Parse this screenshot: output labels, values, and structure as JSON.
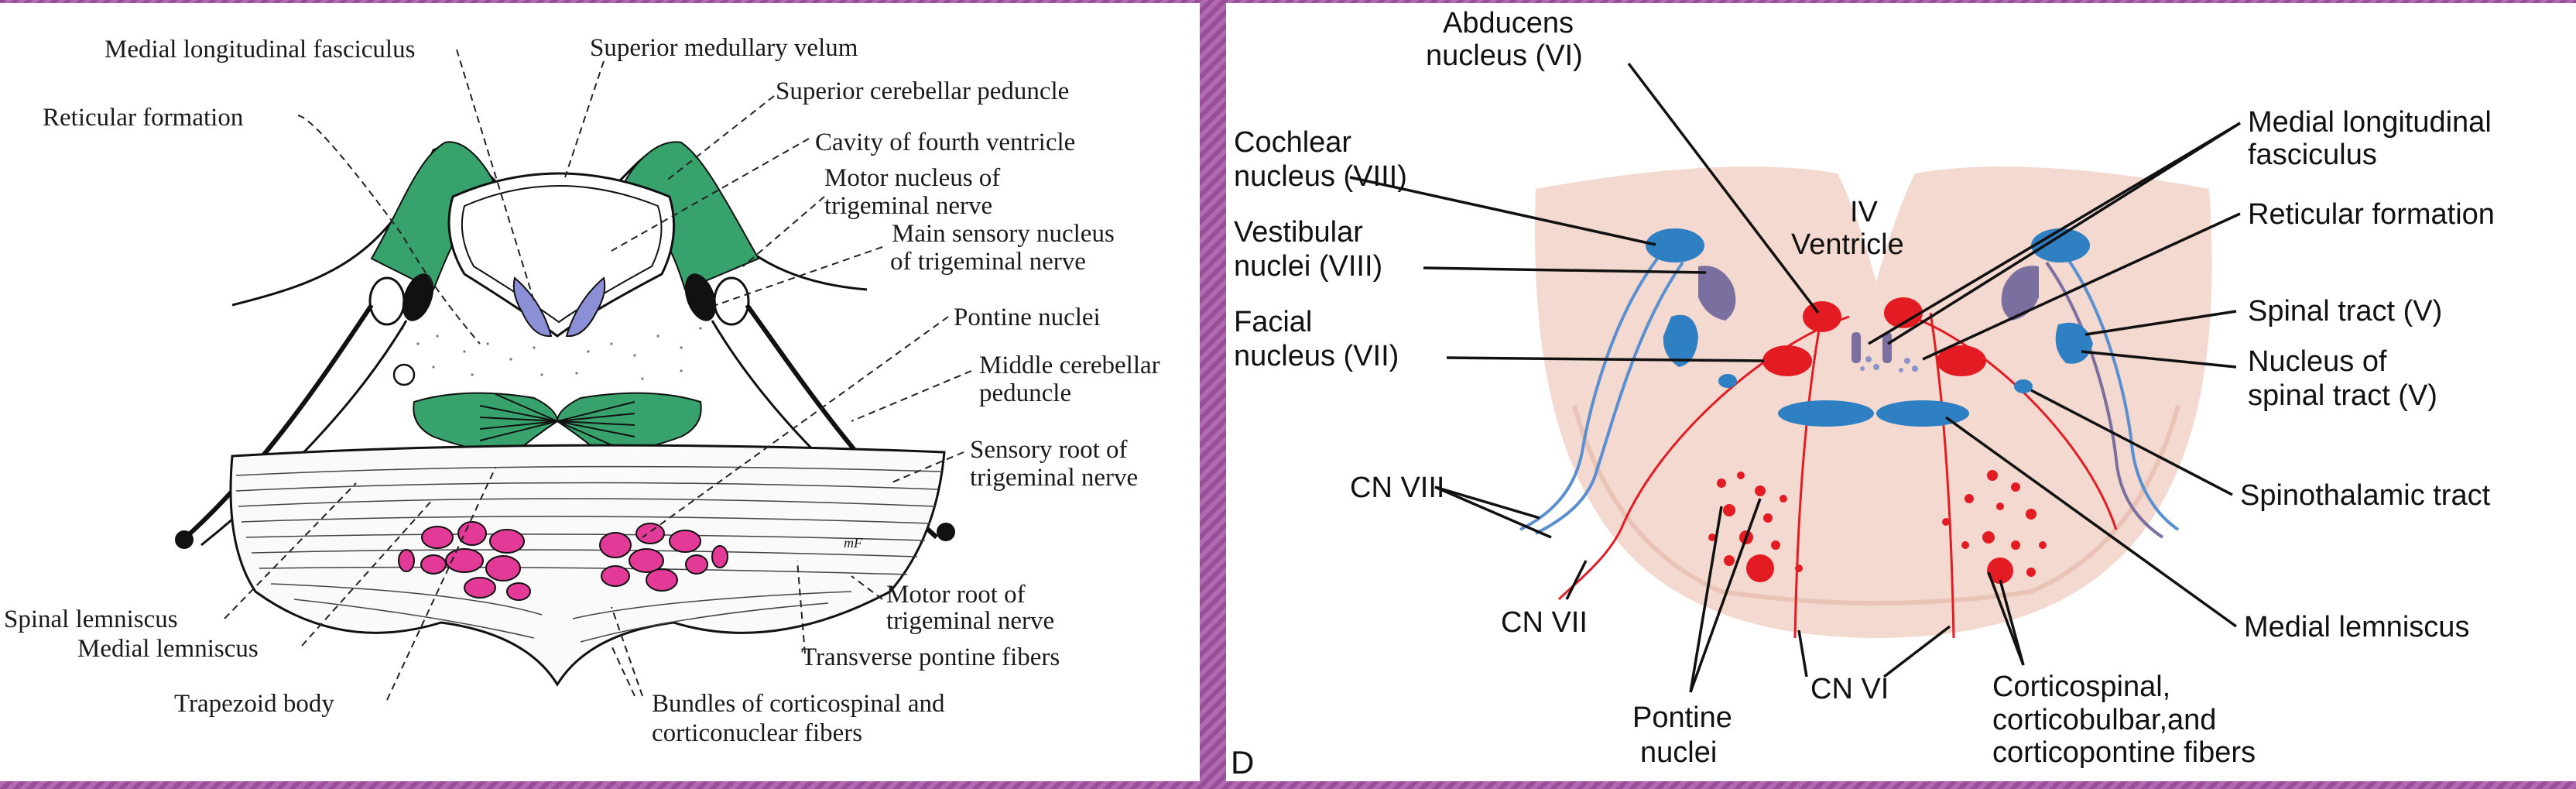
{
  "left_diagram": {
    "labels": {
      "mlf": "Medial longitudinal fasciculus",
      "smv": "Superior medullary velum",
      "scp": "Superior cerebellar peduncle",
      "reticular": "Reticular formation",
      "cavity": "Cavity of fourth ventricle",
      "motor_nucleus_1": "Motor nucleus of",
      "motor_nucleus_2": "trigeminal nerve",
      "main_sensory_1": "Main sensory nucleus",
      "main_sensory_2": "of trigeminal nerve",
      "pontine_nuclei": "Pontine nuclei",
      "mcp_1": "Middle cerebellar",
      "mcp_2": "peduncle",
      "sensory_root_1": "Sensory root of",
      "sensory_root_2": "trigeminal nerve",
      "spinal_lemniscus": "Spinal lemniscus",
      "medial_lemniscus": "Medial lemniscus",
      "motor_root_1": "Motor root of",
      "motor_root_2": "trigeminal nerve",
      "transverse_pontine": "Transverse pontine fibers",
      "trapezoid": "Trapezoid body",
      "bundles_1": "Bundles of corticospinal and",
      "bundles_2": "corticonuclear fibers",
      "signature": "mF"
    }
  },
  "right_diagram": {
    "labels": {
      "abducens_1": "Abducens",
      "abducens_2": "nucleus (VI)",
      "cochlear_1": "Cochlear",
      "cochlear_2": "nucleus (VIII)",
      "vestibular_1": "Vestibular",
      "vestibular_2": "nuclei (VIII)",
      "facial_1": "Facial",
      "facial_2": "nucleus (VII)",
      "iv_1": "IV",
      "iv_2": "Ventricle",
      "mlf_1": "Medial longitudinal",
      "mlf_2": "fasciculus",
      "reticular": "Reticular formation",
      "spinal_tract": "Spinal tract (V)",
      "nucleus_spinal_1": "Nucleus of",
      "nucleus_spinal_2": "spinal tract (V)",
      "spinothalamic": "Spinothalamic tract",
      "cn8": "CN VIII",
      "cn7": "CN VII",
      "cn6": "CN VI",
      "medial_lemniscus": "Medial lemniscus",
      "pontine_1": "Pontine",
      "pontine_2": "nuclei",
      "cortico_1": "Corticospinal,",
      "cortico_2": "corticobulbar,and",
      "cortico_3": "corticopontine fibers",
      "panel_letter": "D"
    },
    "colors": {
      "tissue": "#f3d9cf",
      "red": "#e31b23",
      "blue": "#2f7fc3",
      "purple": "#7a6f9e"
    }
  }
}
